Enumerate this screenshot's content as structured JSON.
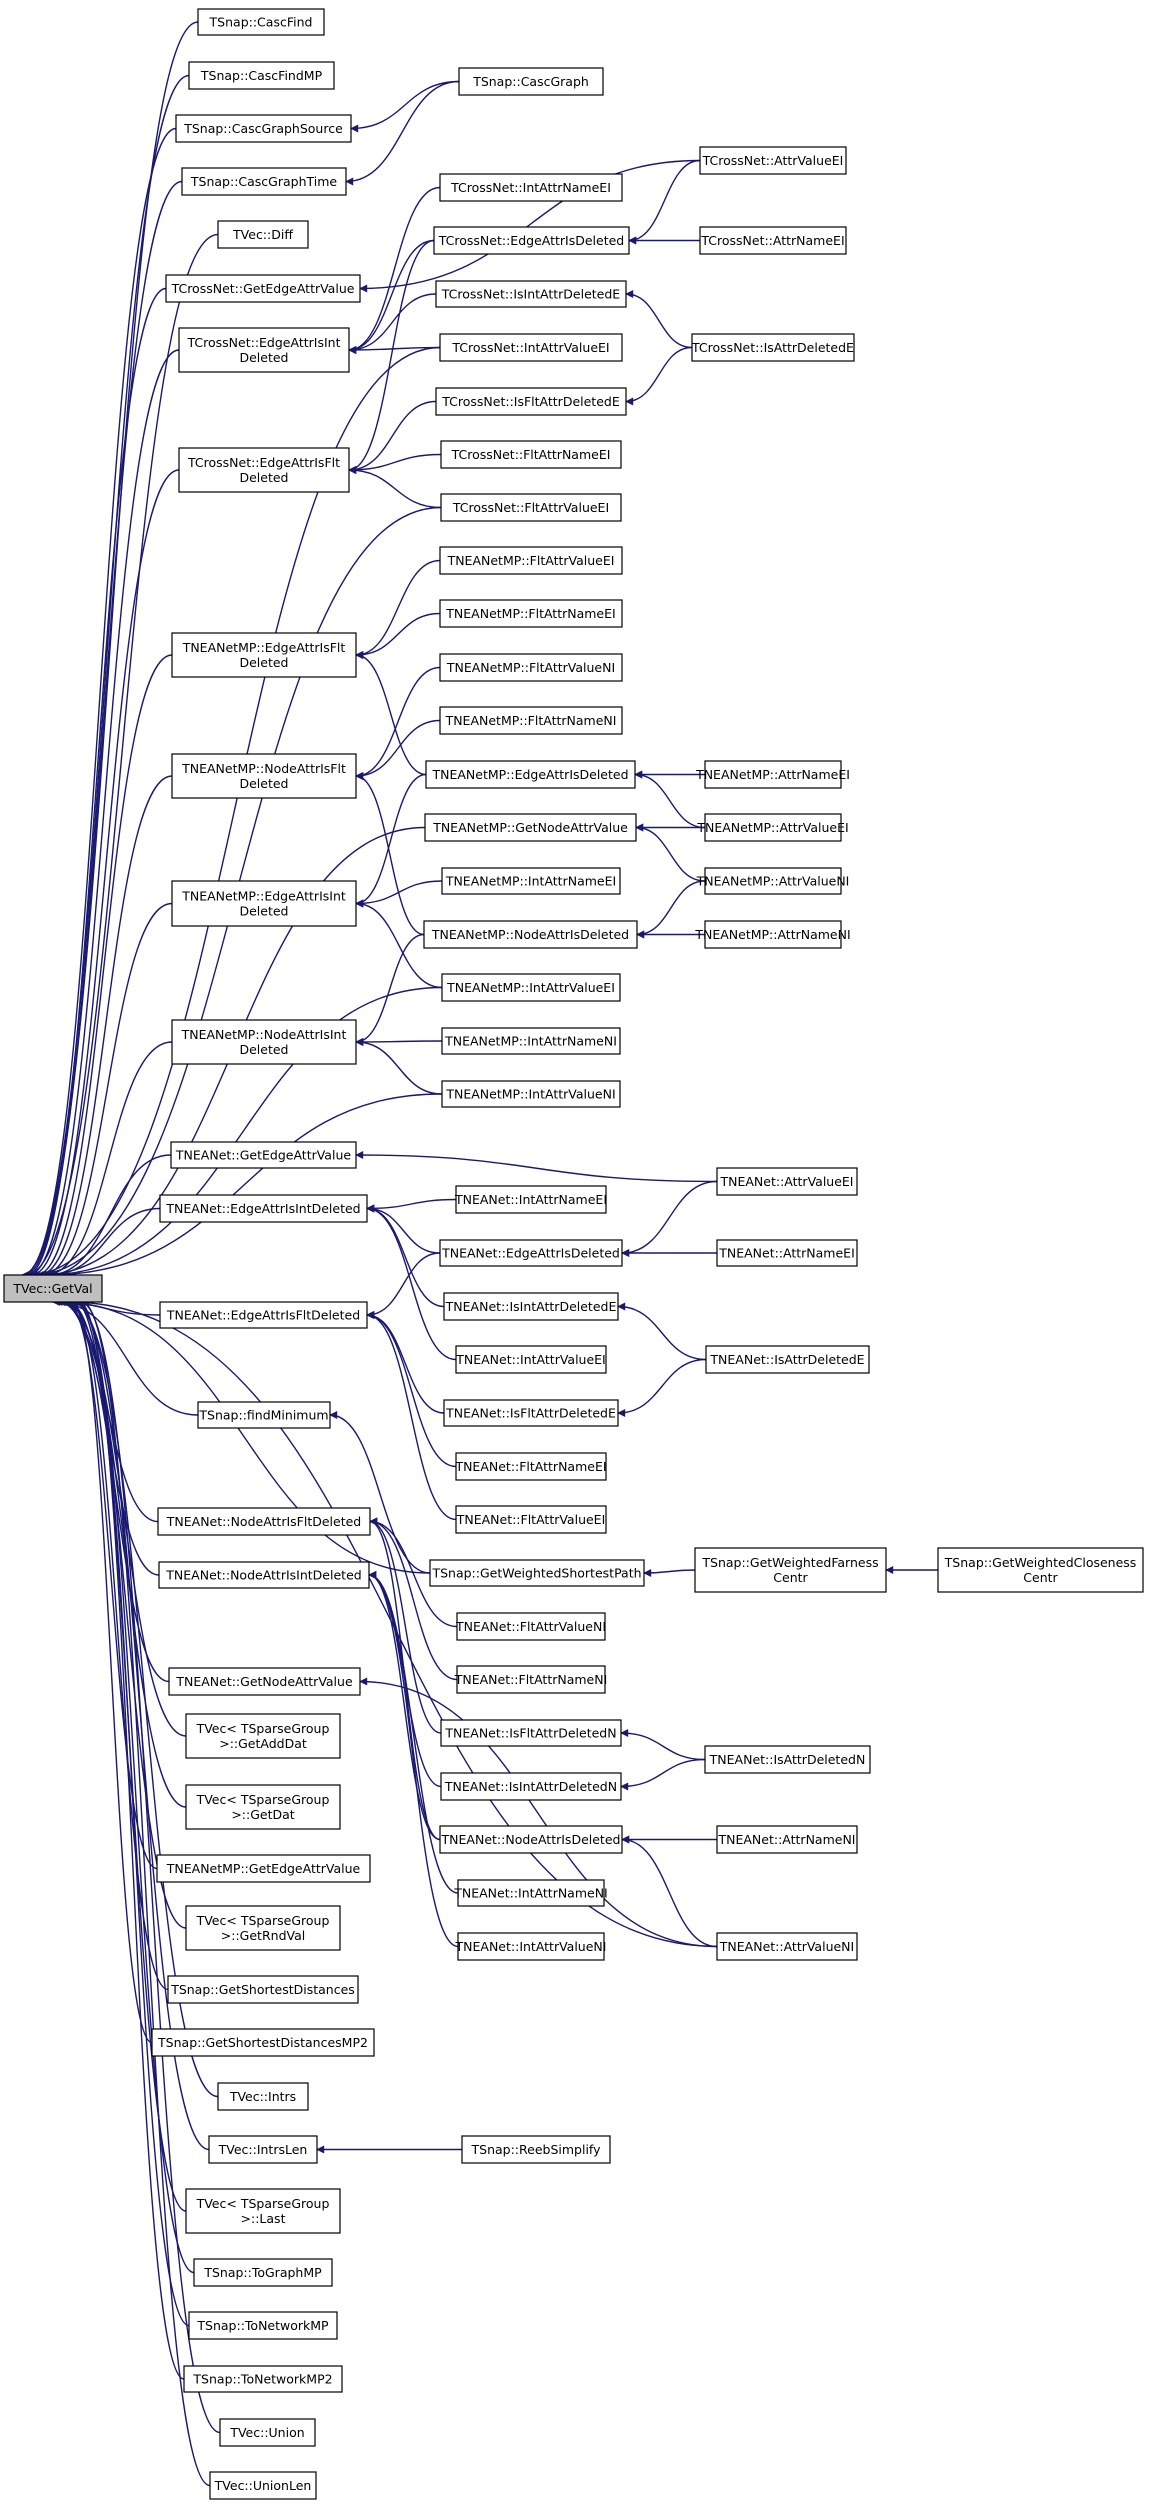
{
  "diagram": {
    "root": "TVec::GetVal",
    "nodes": {
      "root": "TVec::GetVal",
      "cascFind": "TSnap::CascFind",
      "cascFindMP": "TSnap::CascFindMP",
      "cascGraphSource": "TSnap::CascGraphSource",
      "cascGraphTime": "TSnap::CascGraphTime",
      "cascGraph": "TSnap::CascGraph",
      "diff": "TVec::Diff",
      "cnGetEdgeAttrValue": "TCrossNet::GetEdgeAttrValue",
      "cnEdgeAttrIsIntDeleted": [
        "TCrossNet::EdgeAttrIsInt",
        "Deleted"
      ],
      "cnEdgeAttrIsFltDeleted": [
        "TCrossNet::EdgeAttrIsFlt",
        "Deleted"
      ],
      "cnIntAttrNameEI": "TCrossNet::IntAttrNameEI",
      "cnEdgeAttrIsDeleted": "TCrossNet::EdgeAttrIsDeleted",
      "cnIsIntAttrDeletedE": "TCrossNet::IsIntAttrDeletedE",
      "cnIntAttrValueEI": "TCrossNet::IntAttrValueEI",
      "cnIsFltAttrDeletedE": "TCrossNet::IsFltAttrDeletedE",
      "cnFltAttrNameEI": "TCrossNet::FltAttrNameEI",
      "cnFltAttrValueEI": "TCrossNet::FltAttrValueEI",
      "cnAttrValueEI": "TCrossNet::AttrValueEI",
      "cnAttrNameEI": "TCrossNet::AttrNameEI",
      "cnIsAttrDeletedE": "TCrossNet::IsAttrDeletedE",
      "mpEdgeAttrIsFltDeleted": [
        "TNEANetMP::EdgeAttrIsFlt",
        "Deleted"
      ],
      "mpNodeAttrIsFltDeleted": [
        "TNEANetMP::NodeAttrIsFlt",
        "Deleted"
      ],
      "mpEdgeAttrIsIntDeleted": [
        "TNEANetMP::EdgeAttrIsInt",
        "Deleted"
      ],
      "mpNodeAttrIsIntDeleted": [
        "TNEANetMP::NodeAttrIsInt",
        "Deleted"
      ],
      "mpFltAttrValueEI": "TNEANetMP::FltAttrValueEI",
      "mpFltAttrNameEI": "TNEANetMP::FltAttrNameEI",
      "mpFltAttrValueNI": "TNEANetMP::FltAttrValueNI",
      "mpFltAttrNameNI": "TNEANetMP::FltAttrNameNI",
      "mpEdgeAttrIsDeleted": "TNEANetMP::EdgeAttrIsDeleted",
      "mpGetNodeAttrValue": "TNEANetMP::GetNodeAttrValue",
      "mpIntAttrNameEI": "TNEANetMP::IntAttrNameEI",
      "mpNodeAttrIsDeleted": "TNEANetMP::NodeAttrIsDeleted",
      "mpIntAttrValueEI": "TNEANetMP::IntAttrValueEI",
      "mpIntAttrNameNI": "TNEANetMP::IntAttrNameNI",
      "mpIntAttrValueNI": "TNEANetMP::IntAttrValueNI",
      "mpAttrNameEI": "TNEANetMP::AttrNameEI",
      "mpAttrValueEI": "TNEANetMP::AttrValueEI",
      "mpAttrValueNI": "TNEANetMP::AttrValueNI",
      "mpAttrNameNI": "TNEANetMP::AttrNameNI",
      "neGetEdgeAttrValue": "TNEANet::GetEdgeAttrValue",
      "neEdgeAttrIsIntDeleted": "TNEANet::EdgeAttrIsIntDeleted",
      "neEdgeAttrIsFltDeleted": "TNEANet::EdgeAttrIsFltDeleted",
      "findMinimum": "TSnap::findMinimum",
      "neNodeAttrIsFltDeleted": "TNEANet::NodeAttrIsFltDeleted",
      "neNodeAttrIsIntDeleted": "TNEANet::NodeAttrIsIntDeleted",
      "neGetNodeAttrValue": "TNEANet::GetNodeAttrValue",
      "neIntAttrNameEI": "TNEANet::IntAttrNameEI",
      "neEdgeAttrIsDeleted": "TNEANet::EdgeAttrIsDeleted",
      "neIsIntAttrDeletedE": "TNEANet::IsIntAttrDeletedE",
      "neIntAttrValueEI": "TNEANet::IntAttrValueEI",
      "neIsFltAttrDeletedE": "TNEANet::IsFltAttrDeletedE",
      "neFltAttrNameEI": "TNEANet::FltAttrNameEI",
      "neFltAttrValueEI": "TNEANet::FltAttrValueEI",
      "getWeightedShortestPath": "TSnap::GetWeightedShortestPath",
      "neFltAttrValueNI": "TNEANet::FltAttrValueNI",
      "neFltAttrNameNI": "TNEANet::FltAttrNameNI",
      "neIsFltAttrDeletedN": "TNEANet::IsFltAttrDeletedN",
      "neIsIntAttrDeletedN": "TNEANet::IsIntAttrDeletedN",
      "neNodeAttrIsDeleted": "TNEANet::NodeAttrIsDeleted",
      "neIntAttrNameNI": "TNEANet::IntAttrNameNI",
      "neIntAttrValueNI": "TNEANet::IntAttrValueNI",
      "neAttrValueEI": "TNEANet::AttrValueEI",
      "neAttrNameEI": "TNEANet::AttrNameEI",
      "neIsAttrDeletedE": "TNEANet::IsAttrDeletedE",
      "getWeightedFarnessCentr": [
        "TSnap::GetWeightedFarness",
        "Centr"
      ],
      "getWeightedClosenessCentr": [
        "TSnap::GetWeightedCloseness",
        "Centr"
      ],
      "neIsAttrDeletedN": "TNEANet::IsAttrDeletedN",
      "neAttrNameNI": "TNEANet::AttrNameNI",
      "neAttrValueNI": "TNEANet::AttrValueNI",
      "sgGetAddDat": [
        "TVec< TSparseGroup",
        ">::GetAddDat"
      ],
      "sgGetDat": [
        "TVec< TSparseGroup",
        ">::GetDat"
      ],
      "mpGetEdgeAttrValue": "TNEANetMP::GetEdgeAttrValue",
      "sgGetRndVal": [
        "TVec< TSparseGroup",
        ">::GetRndVal"
      ],
      "getShortestDistances": "TSnap::GetShortestDistances",
      "getShortestDistancesMP2": "TSnap::GetShortestDistancesMP2",
      "intrs": "TVec::Intrs",
      "intrsLen": "TVec::IntrsLen",
      "reebSimplify": "TSnap::ReebSimplify",
      "sgLast": [
        "TVec< TSparseGroup",
        ">::Last"
      ],
      "toGraphMP": "TSnap::ToGraphMP",
      "toNetworkMP": "TSnap::ToNetworkMP",
      "toNetworkMP2": "TSnap::ToNetworkMP2",
      "union": "TVec::Union",
      "unionLen": "TVec::UnionLen"
    },
    "edges": [
      [
        "cascFind",
        "root"
      ],
      [
        "cascFindMP",
        "root"
      ],
      [
        "cascGraphSource",
        "root"
      ],
      [
        "cascGraphTime",
        "root"
      ],
      [
        "diff",
        "root"
      ],
      [
        "cnGetEdgeAttrValue",
        "root"
      ],
      [
        "cnEdgeAttrIsIntDeleted",
        "root"
      ],
      [
        "cnEdgeAttrIsFltDeleted",
        "root"
      ],
      [
        "mpEdgeAttrIsFltDeleted",
        "root"
      ],
      [
        "mpNodeAttrIsFltDeleted",
        "root"
      ],
      [
        "mpEdgeAttrIsIntDeleted",
        "root"
      ],
      [
        "mpNodeAttrIsIntDeleted",
        "root"
      ],
      [
        "neGetEdgeAttrValue",
        "root"
      ],
      [
        "neEdgeAttrIsIntDeleted",
        "root"
      ],
      [
        "neEdgeAttrIsFltDeleted",
        "root"
      ],
      [
        "findMinimum",
        "root"
      ],
      [
        "neNodeAttrIsFltDeleted",
        "root"
      ],
      [
        "neNodeAttrIsIntDeleted",
        "root"
      ],
      [
        "neGetNodeAttrValue",
        "root"
      ],
      [
        "sgGetAddDat",
        "root"
      ],
      [
        "sgGetDat",
        "root"
      ],
      [
        "mpGetEdgeAttrValue",
        "root"
      ],
      [
        "sgGetRndVal",
        "root"
      ],
      [
        "getShortestDistances",
        "root"
      ],
      [
        "getShortestDistancesMP2",
        "root"
      ],
      [
        "intrs",
        "root"
      ],
      [
        "intrsLen",
        "root"
      ],
      [
        "sgLast",
        "root"
      ],
      [
        "toGraphMP",
        "root"
      ],
      [
        "toNetworkMP",
        "root"
      ],
      [
        "toNetworkMP2",
        "root"
      ],
      [
        "union",
        "root"
      ],
      [
        "unionLen",
        "root"
      ],
      [
        "cnIntAttrValueEI",
        "root"
      ],
      [
        "cnFltAttrValueEI",
        "root"
      ],
      [
        "mpIntAttrValueEI",
        "root"
      ],
      [
        "mpIntAttrValueNI",
        "root"
      ],
      [
        "mpGetNodeAttrValue",
        "root"
      ],
      [
        "neAttrValueNI",
        "root"
      ],
      [
        "getWeightedShortestPath",
        "root"
      ],
      [
        "cascGraph",
        "cascGraphSource"
      ],
      [
        "cascGraph",
        "cascGraphTime"
      ],
      [
        "cnAttrValueEI",
        "cnGetEdgeAttrValue"
      ],
      [
        "cnEdgeAttrIsDeleted",
        "cnEdgeAttrIsIntDeleted"
      ],
      [
        "cnIsIntAttrDeletedE",
        "cnEdgeAttrIsIntDeleted"
      ],
      [
        "cnIntAttrNameEI",
        "cnEdgeAttrIsIntDeleted"
      ],
      [
        "cnIntAttrValueEI",
        "cnEdgeAttrIsIntDeleted"
      ],
      [
        "cnEdgeAttrIsDeleted",
        "cnEdgeAttrIsFltDeleted"
      ],
      [
        "cnIsFltAttrDeletedE",
        "cnEdgeAttrIsFltDeleted"
      ],
      [
        "cnFltAttrNameEI",
        "cnEdgeAttrIsFltDeleted"
      ],
      [
        "cnFltAttrValueEI",
        "cnEdgeAttrIsFltDeleted"
      ],
      [
        "cnAttrValueEI",
        "cnEdgeAttrIsDeleted"
      ],
      [
        "cnAttrNameEI",
        "cnEdgeAttrIsDeleted"
      ],
      [
        "cnIsAttrDeletedE",
        "cnIsIntAttrDeletedE"
      ],
      [
        "cnIsAttrDeletedE",
        "cnIsFltAttrDeletedE"
      ],
      [
        "mpFltAttrValueEI",
        "mpEdgeAttrIsFltDeleted"
      ],
      [
        "mpFltAttrNameEI",
        "mpEdgeAttrIsFltDeleted"
      ],
      [
        "mpEdgeAttrIsDeleted",
        "mpEdgeAttrIsFltDeleted"
      ],
      [
        "mpFltAttrValueNI",
        "mpNodeAttrIsFltDeleted"
      ],
      [
        "mpFltAttrNameNI",
        "mpNodeAttrIsFltDeleted"
      ],
      [
        "mpNodeAttrIsDeleted",
        "mpNodeAttrIsFltDeleted"
      ],
      [
        "mpEdgeAttrIsDeleted",
        "mpEdgeAttrIsIntDeleted"
      ],
      [
        "mpIntAttrNameEI",
        "mpEdgeAttrIsIntDeleted"
      ],
      [
        "mpIntAttrValueEI",
        "mpEdgeAttrIsIntDeleted"
      ],
      [
        "mpNodeAttrIsDeleted",
        "mpNodeAttrIsIntDeleted"
      ],
      [
        "mpIntAttrNameNI",
        "mpNodeAttrIsIntDeleted"
      ],
      [
        "mpIntAttrValueNI",
        "mpNodeAttrIsIntDeleted"
      ],
      [
        "mpAttrNameEI",
        "mpEdgeAttrIsDeleted"
      ],
      [
        "mpAttrValueEI",
        "mpEdgeAttrIsDeleted"
      ],
      [
        "mpAttrValueEI",
        "mpGetNodeAttrValue"
      ],
      [
        "mpAttrValueNI",
        "mpGetNodeAttrValue"
      ],
      [
        "mpAttrNameNI",
        "mpNodeAttrIsDeleted"
      ],
      [
        "mpAttrValueNI",
        "mpNodeAttrIsDeleted"
      ],
      [
        "neAttrValueEI",
        "neGetEdgeAttrValue"
      ],
      [
        "neIntAttrNameEI",
        "neEdgeAttrIsIntDeleted"
      ],
      [
        "neEdgeAttrIsDeleted",
        "neEdgeAttrIsIntDeleted"
      ],
      [
        "neIsIntAttrDeletedE",
        "neEdgeAttrIsIntDeleted"
      ],
      [
        "neIntAttrValueEI",
        "neEdgeAttrIsIntDeleted"
      ],
      [
        "neEdgeAttrIsDeleted",
        "neEdgeAttrIsFltDeleted"
      ],
      [
        "neIsFltAttrDeletedE",
        "neEdgeAttrIsFltDeleted"
      ],
      [
        "neFltAttrNameEI",
        "neEdgeAttrIsFltDeleted"
      ],
      [
        "neFltAttrValueEI",
        "neEdgeAttrIsFltDeleted"
      ],
      [
        "neAttrValueEI",
        "neEdgeAttrIsDeleted"
      ],
      [
        "neAttrNameEI",
        "neEdgeAttrIsDeleted"
      ],
      [
        "neIsAttrDeletedE",
        "neIsIntAttrDeletedE"
      ],
      [
        "neIsAttrDeletedE",
        "neIsFltAttrDeletedE"
      ],
      [
        "getWeightedShortestPath",
        "findMinimum"
      ],
      [
        "getWeightedFarnessCentr",
        "getWeightedShortestPath"
      ],
      [
        "getWeightedClosenessCentr",
        "getWeightedFarnessCentr"
      ],
      [
        "neFltAttrValueNI",
        "neNodeAttrIsFltDeleted"
      ],
      [
        "neFltAttrNameNI",
        "neNodeAttrIsFltDeleted"
      ],
      [
        "neIsFltAttrDeletedN",
        "neNodeAttrIsFltDeleted"
      ],
      [
        "neNodeAttrIsDeleted",
        "neNodeAttrIsFltDeleted"
      ],
      [
        "neIsIntAttrDeletedN",
        "neNodeAttrIsIntDeleted"
      ],
      [
        "neNodeAttrIsDeleted",
        "neNodeAttrIsIntDeleted"
      ],
      [
        "neIntAttrNameNI",
        "neNodeAttrIsIntDeleted"
      ],
      [
        "neIntAttrValueNI",
        "neNodeAttrIsIntDeleted"
      ],
      [
        "neAttrValueNI",
        "neGetNodeAttrValue"
      ],
      [
        "neIsAttrDeletedN",
        "neIsFltAttrDeletedN"
      ],
      [
        "neIsAttrDeletedN",
        "neIsIntAttrDeletedN"
      ],
      [
        "neAttrNameNI",
        "neNodeAttrIsDeleted"
      ],
      [
        "neAttrValueNI",
        "neNodeAttrIsDeleted"
      ],
      [
        "reebSimplify",
        "intrsLen"
      ]
    ]
  }
}
